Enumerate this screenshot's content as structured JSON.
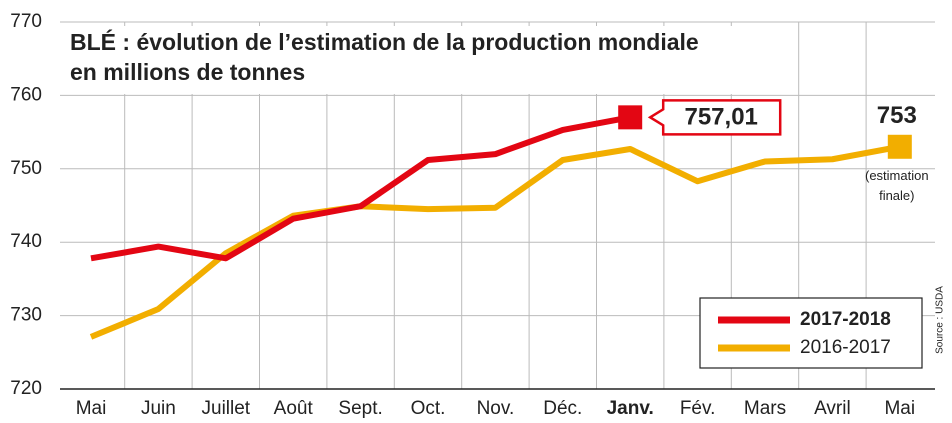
{
  "chart_data": {
    "type": "line",
    "title": "BLÉ : évolution de l’estimation de la production mondiale",
    "subtitle": "en millions de tonnes",
    "categories": [
      "Mai",
      "Juin",
      "Juillet",
      "Août",
      "Sept.",
      "Oct.",
      "Nov.",
      "Déc.",
      "Janv.",
      "Fév.",
      "Mars",
      "Avril",
      "Mai"
    ],
    "bold_category_index": 8,
    "series": [
      {
        "name": "2017-2018",
        "color": "#e30613",
        "values": [
          737.8,
          739.4,
          737.8,
          743.2,
          744.9,
          751.2,
          752.0,
          755.3,
          757.01,
          null,
          null,
          null,
          null
        ],
        "value_labels": [
          null,
          null,
          null,
          null,
          null,
          null,
          null,
          null,
          "757,01",
          null,
          null,
          null,
          null
        ]
      },
      {
        "name": "2016-2017",
        "color": "#f2ae00",
        "values": [
          727.1,
          730.9,
          738.5,
          743.6,
          744.9,
          744.5,
          744.7,
          751.2,
          752.7,
          748.3,
          751.0,
          751.3,
          753
        ],
        "value_labels": [
          null,
          null,
          null,
          null,
          null,
          null,
          null,
          null,
          null,
          null,
          null,
          null,
          "753"
        ]
      }
    ],
    "annotation": "(estimation finale)",
    "source": "Source : USDA",
    "ylim": [
      720,
      770
    ],
    "yticks": [
      720,
      730,
      740,
      750,
      760,
      770
    ],
    "grid": true,
    "legend": "lower right"
  }
}
